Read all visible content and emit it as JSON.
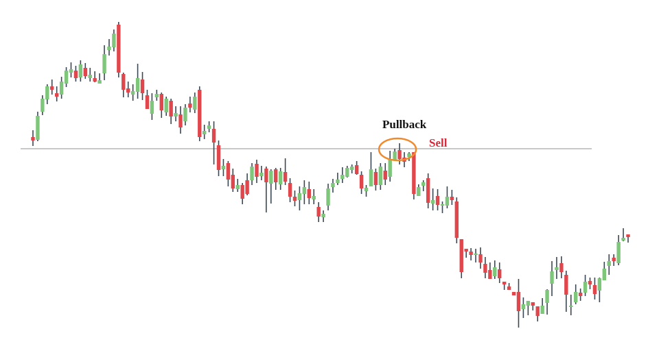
{
  "chart_data": {
    "type": "candlestick",
    "title": "",
    "xlabel": "",
    "ylabel": "",
    "grid": false,
    "candle_format": [
      "open",
      "high",
      "low",
      "close"
    ],
    "candles": [
      [
        300,
        310,
        287,
        295
      ],
      [
        296,
        337,
        294,
        331
      ],
      [
        337,
        361,
        332,
        356
      ],
      [
        355,
        377,
        348,
        374
      ],
      [
        374,
        384,
        362,
        369
      ],
      [
        364,
        374,
        352,
        359
      ],
      [
        362,
        388,
        356,
        381
      ],
      [
        378,
        402,
        373,
        397
      ],
      [
        394,
        409,
        387,
        399
      ],
      [
        397,
        404,
        381,
        386
      ],
      [
        387,
        412,
        381,
        406
      ],
      [
        401,
        408,
        385,
        389
      ],
      [
        386,
        401,
        381,
        391
      ],
      [
        386,
        396,
        380,
        381
      ],
      [
        378,
        393,
        378,
        383
      ],
      [
        393,
        434,
        383,
        421
      ],
      [
        427,
        443,
        419,
        432
      ],
      [
        431,
        457,
        425,
        451
      ],
      [
        464,
        468,
        387,
        394
      ],
      [
        392,
        394,
        358,
        369
      ],
      [
        371,
        381,
        358,
        365
      ],
      [
        362,
        377,
        353,
        367
      ],
      [
        366,
        407,
        356,
        386
      ],
      [
        384,
        395,
        354,
        364
      ],
      [
        361,
        369,
        341,
        341
      ],
      [
        334,
        364,
        325,
        353
      ],
      [
        358,
        369,
        353,
        363
      ],
      [
        363,
        365,
        328,
        339
      ],
      [
        336,
        359,
        331,
        356
      ],
      [
        353,
        356,
        319,
        330
      ],
      [
        330,
        345,
        323,
        335
      ],
      [
        333,
        345,
        305,
        314
      ],
      [
        323,
        348,
        317,
        343
      ],
      [
        349,
        359,
        336,
        343
      ],
      [
        340,
        365,
        335,
        359
      ],
      [
        369,
        374,
        294,
        300
      ],
      [
        304,
        318,
        297,
        309
      ],
      [
        312,
        323,
        307,
        317
      ],
      [
        312,
        323,
        260,
        292
      ],
      [
        288,
        295,
        243,
        252
      ],
      [
        253,
        268,
        243,
        258
      ],
      [
        262,
        265,
        228,
        238
      ],
      [
        245,
        254,
        220,
        225
      ],
      [
        224,
        239,
        220,
        230
      ],
      [
        230,
        233,
        202,
        210
      ],
      [
        237,
        247,
        215,
        217
      ],
      [
        237,
        262,
        230,
        257
      ],
      [
        261,
        267,
        233,
        242
      ],
      [
        243,
        258,
        237,
        248
      ],
      [
        254,
        257,
        190,
        234
      ],
      [
        232,
        253,
        203,
        251
      ],
      [
        253,
        255,
        223,
        234
      ],
      [
        231,
        255,
        223,
        250
      ],
      [
        249,
        269,
        230,
        235
      ],
      [
        233,
        240,
        205,
        213
      ],
      [
        213,
        222,
        199,
        207
      ],
      [
        208,
        228,
        193,
        218
      ],
      [
        217,
        237,
        202,
        227
      ],
      [
        224,
        235,
        202,
        211
      ],
      [
        209,
        224,
        202,
        214
      ],
      [
        198,
        205,
        176,
        184
      ],
      [
        183,
        193,
        176,
        188
      ],
      [
        200,
        232,
        193,
        225
      ],
      [
        227,
        239,
        219,
        233
      ],
      [
        233,
        248,
        230,
        238
      ],
      [
        239,
        256,
        233,
        245
      ],
      [
        242,
        258,
        241,
        255
      ],
      [
        252,
        260,
        247,
        257
      ],
      [
        259,
        265,
        245,
        246
      ],
      [
        245,
        250,
        217,
        225
      ],
      [
        221,
        230,
        213,
        226
      ],
      [
        228,
        278,
        228,
        253
      ],
      [
        249,
        254,
        222,
        230
      ],
      [
        230,
        262,
        223,
        257
      ],
      [
        251,
        262,
        230,
        238
      ],
      [
        242,
        280,
        235,
        267
      ],
      [
        267,
        283,
        267,
        279
      ],
      [
        281,
        291,
        260,
        268
      ],
      [
        270,
        278,
        256,
        264
      ],
      [
        271,
        278,
        265,
        276
      ],
      [
        278,
        278,
        209,
        217
      ],
      [
        214,
        231,
        214,
        227
      ],
      [
        229,
        237,
        221,
        234
      ],
      [
        240,
        247,
        196,
        204
      ],
      [
        203,
        225,
        193,
        208
      ],
      [
        214,
        224,
        193,
        201
      ],
      [
        200,
        206,
        189,
        202
      ],
      [
        200,
        228,
        196,
        213
      ],
      [
        213,
        223,
        201,
        208
      ],
      [
        206,
        212,
        145,
        153
      ],
      [
        151,
        151,
        94,
        103
      ],
      [
        137,
        137,
        124,
        133
      ],
      [
        133,
        138,
        120,
        128
      ],
      [
        128,
        137,
        117,
        130
      ],
      [
        129,
        139,
        108,
        117
      ],
      [
        115,
        125,
        94,
        102
      ],
      [
        106,
        117,
        93,
        93
      ],
      [
        97,
        120,
        93,
        110
      ],
      [
        107,
        117,
        87,
        94
      ],
      [
        89,
        89,
        77,
        85
      ],
      [
        82,
        87,
        77,
        77
      ],
      [
        74,
        74,
        69,
        69
      ],
      [
        74,
        93,
        22,
        46
      ],
      [
        49,
        66,
        36,
        56
      ],
      [
        54,
        61,
        40,
        61
      ],
      [
        59,
        59,
        47,
        54
      ],
      [
        53,
        53,
        31,
        39
      ],
      [
        42,
        65,
        42,
        54
      ],
      [
        58,
        78,
        41,
        77
      ],
      [
        86,
        119,
        68,
        104
      ],
      [
        106,
        125,
        93,
        110
      ],
      [
        116,
        126,
        94,
        103
      ],
      [
        99,
        105,
        45,
        70
      ],
      [
        53,
        70,
        40,
        54
      ],
      [
        59,
        85,
        56,
        74
      ],
      [
        73,
        79,
        61,
        68
      ],
      [
        73,
        99,
        68,
        89
      ],
      [
        90,
        95,
        78,
        85
      ],
      [
        84,
        95,
        63,
        71
      ],
      [
        76,
        95,
        59,
        94
      ],
      [
        91,
        118,
        91,
        108
      ],
      [
        112,
        129,
        99,
        119
      ],
      [
        124,
        129,
        112,
        119
      ],
      [
        116,
        157,
        113,
        147
      ],
      [
        149,
        167,
        148,
        153
      ],
      [
        158,
        158,
        146,
        154
      ]
    ],
    "support_resistance_level": 283,
    "annotations": {
      "pullback": "Pullback",
      "sell": "Sell",
      "highlight_candle_index": 77
    },
    "colors": {
      "bullish": "#7dc67a",
      "bearish": "#e0474c",
      "wick": "#3b4753",
      "level_line": "#b5b5b5",
      "highlight": "#f08a2c",
      "sell_text": "#d8283a"
    }
  }
}
